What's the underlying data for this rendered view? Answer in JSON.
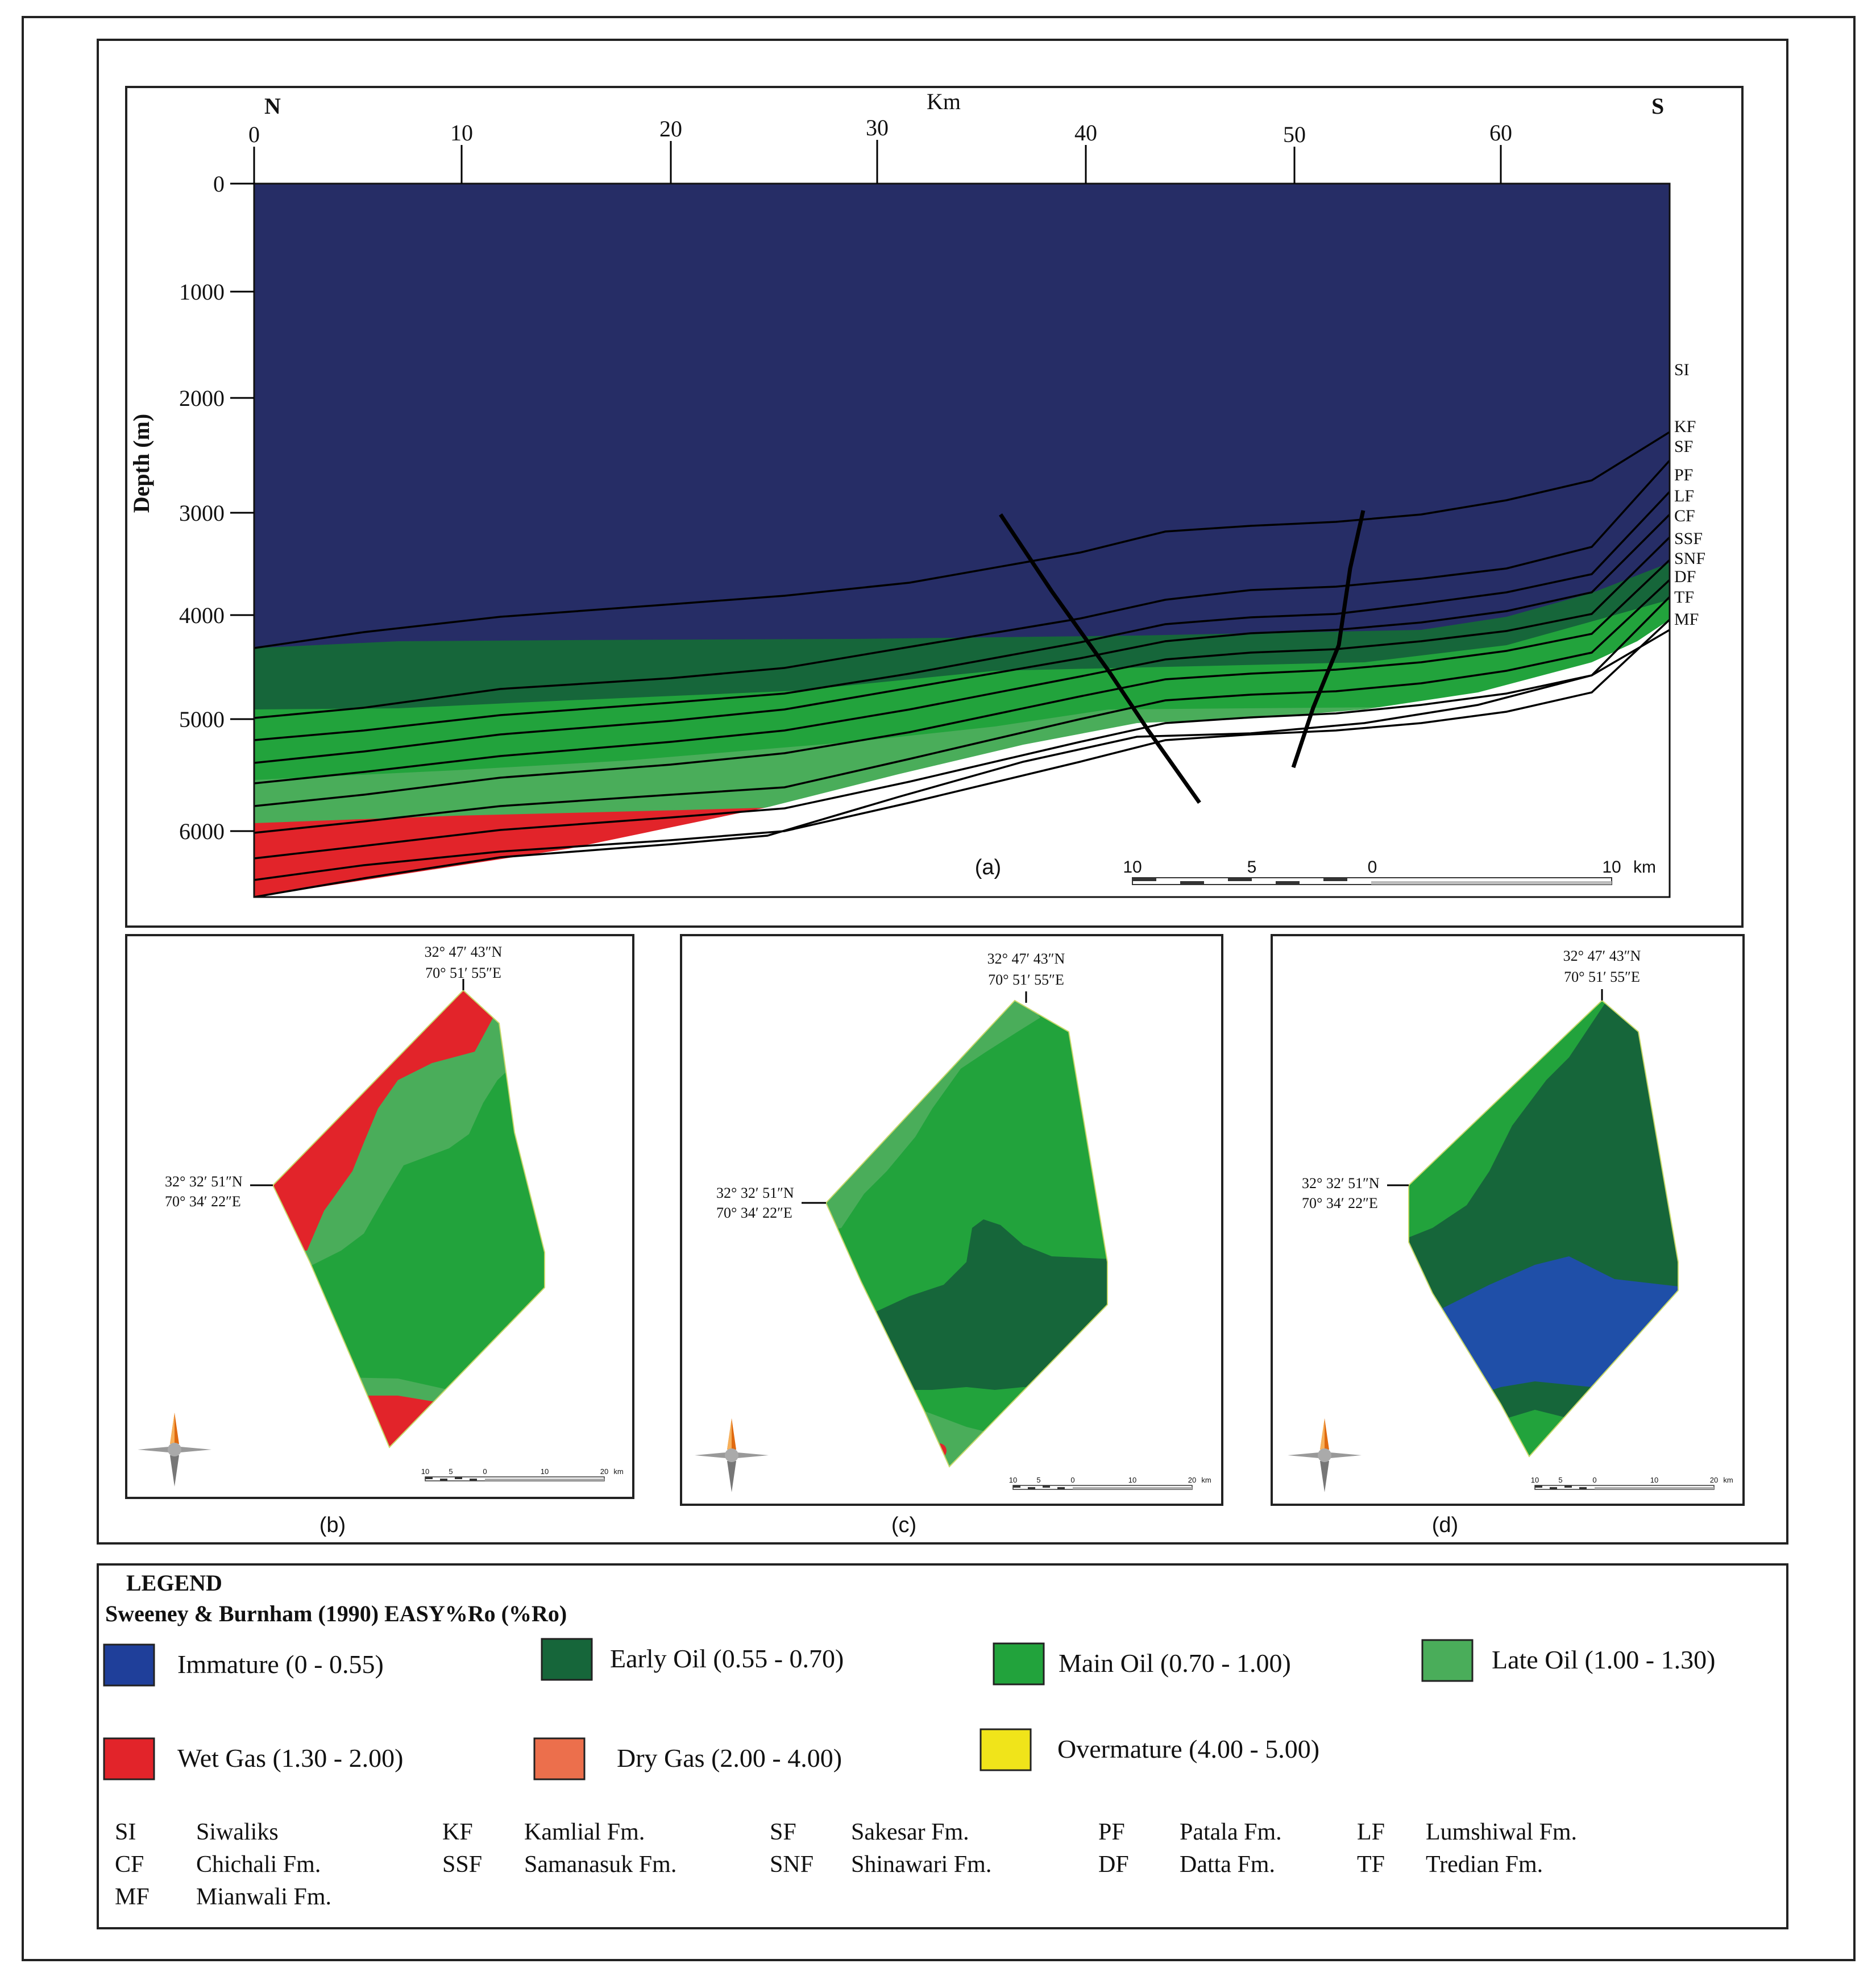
{
  "section": {
    "north_label": "N",
    "south_label": "S",
    "x_axis_unit": "Km",
    "x_ticks": [
      "0",
      "10",
      "20",
      "30",
      "40",
      "50",
      "60"
    ],
    "y_axis_label": "Depth (m)",
    "y_ticks": [
      "0",
      "1000",
      "2000",
      "3000",
      "4000",
      "5000",
      "6000"
    ],
    "formation_labels": [
      "SI",
      "KF",
      "SF",
      "PF",
      "LF",
      "CF",
      "SSF",
      "SNF",
      "DF",
      "TF",
      "MF"
    ],
    "panel_label": "(a)",
    "scale_ticks": [
      "10",
      "5",
      "0",
      "10"
    ],
    "scale_unit": "km"
  },
  "maps": [
    {
      "panel_label": "(b)",
      "top_coord_lat": "32° 47′ 43″N",
      "top_coord_lon": "70° 51′ 55″E",
      "left_coord_lat": "32° 32′ 51″N",
      "left_coord_lon": "70° 34′ 22″E",
      "scale_ticks": [
        "10",
        "5",
        "0",
        "10",
        "20"
      ],
      "scale_unit": "km"
    },
    {
      "panel_label": "(c)",
      "top_coord_lat": "32° 47′ 43″N",
      "top_coord_lon": "70° 51′ 55″E",
      "left_coord_lat": "32° 32′ 51″N",
      "left_coord_lon": "70° 34′ 22″E",
      "scale_ticks": [
        "10",
        "5",
        "0",
        "10",
        "20"
      ],
      "scale_unit": "km"
    },
    {
      "panel_label": "(d)",
      "top_coord_lat": "32° 47′ 43″N",
      "top_coord_lon": "70° 51′ 55″E",
      "left_coord_lat": "32° 32′ 51″N",
      "left_coord_lon": "70° 34′ 22″E",
      "scale_ticks": [
        "10",
        "5",
        "0",
        "10",
        "20"
      ],
      "scale_unit": "km"
    }
  ],
  "legend": {
    "title": "LEGEND",
    "subtitle": "Sweeney & Burnham (1990) EASY%Ro (%Ro)",
    "classes": [
      {
        "label": "Immature (0 - 0.55)",
        "color": "#1f3f9a"
      },
      {
        "label": "Early Oil (0.55 - 0.70)",
        "color": "#16663a"
      },
      {
        "label": "Main Oil (0.70 - 1.00)",
        "color": "#22a33c"
      },
      {
        "label": "Late Oil (1.00 - 1.30)",
        "color": "#4aad5a"
      },
      {
        "label": "Wet Gas (1.30 - 2.00)",
        "color": "#e2242a"
      },
      {
        "label": "Dry Gas (2.00 - 4.00)",
        "color": "#ec6f4c"
      },
      {
        "label": "Overmature (4.00 - 5.00)",
        "color": "#f0e41a"
      }
    ],
    "abbreviations": [
      {
        "code": "SI",
        "name": "Siwaliks"
      },
      {
        "code": "KF",
        "name": "Kamlial Fm."
      },
      {
        "code": "SF",
        "name": "Sakesar Fm."
      },
      {
        "code": "PF",
        "name": "Patala Fm."
      },
      {
        "code": "LF",
        "name": "Lumshiwal  Fm."
      },
      {
        "code": "CF",
        "name": "Chichali Fm."
      },
      {
        "code": "SSF",
        "name": "Samanasuk Fm."
      },
      {
        "code": "SNF",
        "name": "Shinawari Fm."
      },
      {
        "code": "DF",
        "name": "Datta Fm."
      },
      {
        "code": "TF",
        "name": "Tredian Fm."
      },
      {
        "code": "MF",
        "name": "Mianwali Fm."
      }
    ]
  },
  "colors": {
    "siwaliks_fill": "#262d66",
    "early_oil": "#16663a",
    "main_oil": "#22a33c",
    "late_oil": "#4aad5a",
    "wet_gas": "#e2242a",
    "immature_map": "#1f4fa8"
  }
}
